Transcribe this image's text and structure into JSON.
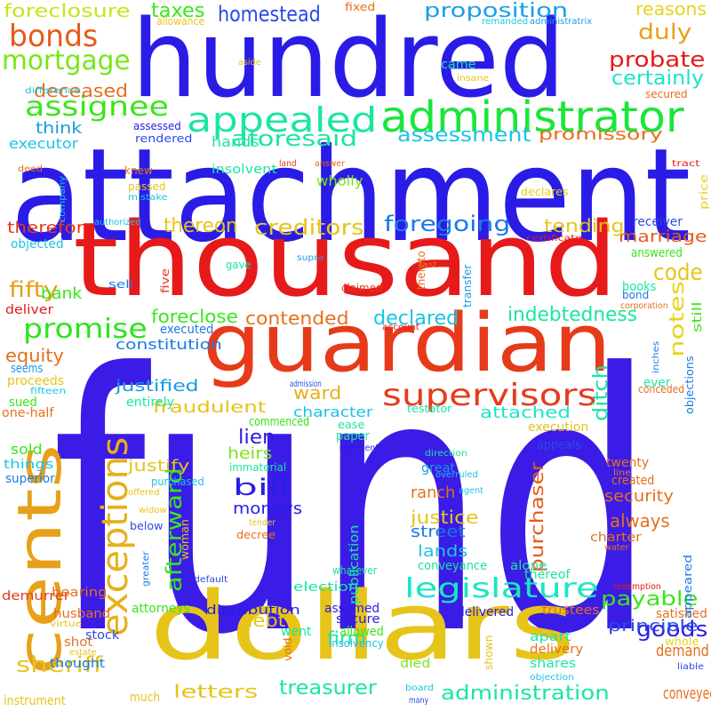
{
  "words": [
    {
      "text": "fund",
      "color": "#3a1ce6"
    },
    {
      "text": "attachment",
      "color": "#2a1ce6"
    },
    {
      "text": "hundred",
      "color": "#2a1ce6"
    },
    {
      "text": "thousand",
      "color": "#e61a1a"
    },
    {
      "text": "guardian",
      "color": "#e63a1a"
    },
    {
      "text": "dollars",
      "color": "#e6c41a"
    },
    {
      "text": "administrator",
      "color": "#1ae63a"
    },
    {
      "text": "appealed",
      "color": "#1ae6a0"
    },
    {
      "text": "cents",
      "color": "#e6a01a"
    },
    {
      "text": "exceptions",
      "color": "#e6b01a"
    },
    {
      "text": "supervisors",
      "color": "#e63a1a"
    },
    {
      "text": "legislature",
      "color": "#1ae6c4"
    },
    {
      "text": "mortgage",
      "color": "#7ae61a"
    },
    {
      "text": "bonds",
      "color": "#e65a1a"
    },
    {
      "text": "assignee",
      "color": "#3ae61a"
    },
    {
      "text": "promise",
      "color": "#2ae61a"
    },
    {
      "text": "homestead",
      "color": "#2a4ae6"
    },
    {
      "text": "proposition",
      "color": "#1aa0e6"
    },
    {
      "text": "foreclosure",
      "color": "#c4e61a"
    },
    {
      "text": "taxes",
      "color": "#3ae61a"
    },
    {
      "text": "aforesaid",
      "color": "#1ae6a0"
    },
    {
      "text": "assessment",
      "color": "#1ac4e6"
    },
    {
      "text": "creditors",
      "color": "#e6c41a"
    },
    {
      "text": "foregoing",
      "color": "#1a7ae6"
    },
    {
      "text": "thereon",
      "color": "#e6c41a"
    },
    {
      "text": "promissory",
      "color": "#e6701a"
    },
    {
      "text": "probate",
      "color": "#e61a1a"
    },
    {
      "text": "certainly",
      "color": "#1ae6c4"
    },
    {
      "text": "duly",
      "color": "#e6a01a"
    },
    {
      "text": "reasons",
      "color": "#e6d41a"
    },
    {
      "text": "deceased",
      "color": "#e6701a"
    },
    {
      "text": "fifty",
      "color": "#e6a01a"
    },
    {
      "text": "code",
      "color": "#e6c41a"
    },
    {
      "text": "marriage",
      "color": "#e65a1a"
    },
    {
      "text": "notes",
      "color": "#e6d41a"
    },
    {
      "text": "tending",
      "color": "#e6c41a"
    },
    {
      "text": "indebtedness",
      "color": "#1ae6a0"
    },
    {
      "text": "declared",
      "color": "#1ac4e6"
    },
    {
      "text": "contended",
      "color": "#e6701a"
    },
    {
      "text": "foreclose",
      "color": "#3ae61a"
    },
    {
      "text": "constitution",
      "color": "#1a7ae6"
    },
    {
      "text": "equity",
      "color": "#e6701a"
    },
    {
      "text": "bank",
      "color": "#3ae61a"
    },
    {
      "text": "ward",
      "color": "#e6b01a"
    },
    {
      "text": "justified",
      "color": "#1a9ae6"
    },
    {
      "text": "fraudulent",
      "color": "#e6c41a"
    },
    {
      "text": "character",
      "color": "#1ac4e6"
    },
    {
      "text": "attached",
      "color": "#1ae6c4"
    },
    {
      "text": "ditch",
      "color": "#1ae6a0"
    },
    {
      "text": "lien",
      "color": "#2a1ce6"
    },
    {
      "text": "heirs",
      "color": "#7ae61a"
    },
    {
      "text": "bill",
      "color": "#2a1ce6"
    },
    {
      "text": "moneys",
      "color": "#2a1ce6"
    },
    {
      "text": "afterward",
      "color": "#3ae61a"
    },
    {
      "text": "justify",
      "color": "#e6c41a"
    },
    {
      "text": "justice",
      "color": "#e6c41a"
    },
    {
      "text": "street",
      "color": "#1a7ae6"
    },
    {
      "text": "lands",
      "color": "#1ac4e6"
    },
    {
      "text": "ranch",
      "color": "#e6701a"
    },
    {
      "text": "purchaser",
      "color": "#e65a1a"
    },
    {
      "text": "security",
      "color": "#e6701a"
    },
    {
      "text": "always",
      "color": "#e6701a"
    },
    {
      "text": "goods",
      "color": "#2a1ce6"
    },
    {
      "text": "demand",
      "color": "#e6701a"
    },
    {
      "text": "payable",
      "color": "#3ae61a"
    },
    {
      "text": "principle",
      "color": "#2a4ae6"
    },
    {
      "text": "debt",
      "color": "#e6c41a"
    },
    {
      "text": "sheriff",
      "color": "#e6c41a"
    },
    {
      "text": "letters",
      "color": "#e6c41a"
    },
    {
      "text": "treasurer",
      "color": "#1ae6a0"
    },
    {
      "text": "administration",
      "color": "#1ae6a0"
    },
    {
      "text": "firm",
      "color": "#1ae6a0"
    },
    {
      "text": "conveyed",
      "color": "#e6701a"
    },
    {
      "text": "think",
      "color": "#1a9ae6"
    },
    {
      "text": "executor",
      "color": "#1ac4e6"
    },
    {
      "text": "came",
      "color": "#1ae6a0"
    },
    {
      "text": "hands",
      "color": "#1ae6a0"
    },
    {
      "text": "wholly",
      "color": "#7ae61a"
    },
    {
      "text": "therefor",
      "color": "#e63a1a"
    },
    {
      "text": "fifteen",
      "color": "#1ac4e6"
    },
    {
      "text": "sold",
      "color": "#3ae61a"
    },
    {
      "text": "things",
      "color": "#1ac4e6"
    },
    {
      "text": "superior",
      "color": "#1a7ae6"
    },
    {
      "text": "demurrer",
      "color": "#e63a1a"
    },
    {
      "text": "bearing",
      "color": "#e6701a"
    },
    {
      "text": "husband",
      "color": "#e6701a"
    },
    {
      "text": "thought",
      "color": "#1a7ae6"
    },
    {
      "text": "much",
      "color": "#e6c41a"
    },
    {
      "text": "instrument",
      "color": "#e6c41a"
    },
    {
      "text": "stock",
      "color": "#2a4ae6"
    },
    {
      "text": "attorneys",
      "color": "#3ae61a"
    },
    {
      "text": "distribution",
      "color": "#2a1ce6"
    },
    {
      "text": "election",
      "color": "#1ae6a0"
    },
    {
      "text": "assumed",
      "color": "#2a1ce6"
    },
    {
      "text": "secure",
      "color": "#2a1ce6"
    },
    {
      "text": "allowed",
      "color": "#3ae61a"
    },
    {
      "text": "went",
      "color": "#1ae6a0"
    },
    {
      "text": "died",
      "color": "#7ae61a"
    },
    {
      "text": "shares",
      "color": "#1ae6a0"
    },
    {
      "text": "delivery",
      "color": "#e6701a"
    },
    {
      "text": "apart",
      "color": "#1ae6a0"
    },
    {
      "text": "trustees",
      "color": "#e6701a"
    },
    {
      "text": "delivered",
      "color": "#2a1ce6"
    },
    {
      "text": "whole",
      "color": "#e6d41a"
    },
    {
      "text": "satisfied",
      "color": "#e6701a"
    },
    {
      "text": "appeared",
      "color": "#1a7ae6"
    },
    {
      "text": "conveyance",
      "color": "#1ae6a0"
    },
    {
      "text": "alone",
      "color": "#1ae6a0"
    },
    {
      "text": "thereof",
      "color": "#1ae6a0"
    },
    {
      "text": "great",
      "color": "#1a9ae6"
    },
    {
      "text": "twenty",
      "color": "#e6701a"
    },
    {
      "text": "created",
      "color": "#e6701a"
    },
    {
      "text": "charter",
      "color": "#e6701a"
    },
    {
      "text": "publication",
      "color": "#1ae6a0"
    },
    {
      "text": "commenced",
      "color": "#3ae61a"
    },
    {
      "text": "paper",
      "color": "#1ae6a0"
    },
    {
      "text": "execution",
      "color": "#e6c41a"
    },
    {
      "text": "appeals",
      "color": "#2a4ae6"
    },
    {
      "text": "entirely",
      "color": "#1ae6a0"
    },
    {
      "text": "sued",
      "color": "#3ae61a"
    },
    {
      "text": "one-half",
      "color": "#e6701a"
    },
    {
      "text": "seems",
      "color": "#1a9ae6"
    },
    {
      "text": "proceeds",
      "color": "#e6c41a"
    },
    {
      "text": "deliver",
      "color": "#e61a1a"
    },
    {
      "text": "executed",
      "color": "#1a7ae6"
    },
    {
      "text": "objected",
      "color": "#1ac4e6"
    },
    {
      "text": "sell",
      "color": "#1a7ae6"
    },
    {
      "text": "books",
      "color": "#1ae6a0"
    },
    {
      "text": "answered",
      "color": "#3ae61a"
    },
    {
      "text": "receiver",
      "color": "#2a4ae6"
    },
    {
      "text": "ever",
      "color": "#1ae6a0"
    },
    {
      "text": "conceded",
      "color": "#e6701a"
    },
    {
      "text": "objections",
      "color": "#1a7ae6"
    },
    {
      "text": "still",
      "color": "#3ae61a"
    },
    {
      "text": "price",
      "color": "#e6d41a"
    },
    {
      "text": "tract",
      "color": "#e61a1a"
    },
    {
      "text": "secured",
      "color": "#e6701a"
    },
    {
      "text": "insane",
      "color": "#e6c41a"
    },
    {
      "text": "allowance",
      "color": "#e6c41a"
    },
    {
      "text": "fixed",
      "color": "#e6701a"
    },
    {
      "text": "remanded",
      "color": "#1ac4e6"
    },
    {
      "text": "administratrix",
      "color": "#1a9ae6"
    },
    {
      "text": "aside",
      "color": "#e6c41a"
    },
    {
      "text": "difference",
      "color": "#1ac4e6"
    },
    {
      "text": "rendered",
      "color": "#2a4ae6"
    },
    {
      "text": "assessed",
      "color": "#2a1ce6"
    },
    {
      "text": "deed",
      "color": "#e6701a"
    },
    {
      "text": "knew",
      "color": "#e6701a"
    },
    {
      "text": "passed",
      "color": "#e6c41a"
    },
    {
      "text": "insolvent",
      "color": "#1ae6a0"
    },
    {
      "text": "land",
      "color": "#e63a1a"
    },
    {
      "text": "answer",
      "color": "#e6701a"
    },
    {
      "text": "company",
      "color": "#1ac4e6"
    },
    {
      "text": "mistake",
      "color": "#1ac4e6"
    },
    {
      "text": "declares",
      "color": "#e6d41a"
    },
    {
      "text": "authorized",
      "color": "#1ac4e6"
    },
    {
      "text": "certificate",
      "color": "#e61a1a"
    },
    {
      "text": "gave",
      "color": "#1ae6a0"
    },
    {
      "text": "supra",
      "color": "#1a9ae6"
    },
    {
      "text": "thereto",
      "color": "#e6701a"
    },
    {
      "text": "transfer",
      "color": "#1a9ae6"
    },
    {
      "text": "last",
      "color": "#e6701a"
    },
    {
      "text": "claimed",
      "color": "#e63a1a"
    },
    {
      "text": "bond",
      "color": "#1a7ae6"
    },
    {
      "text": "corporation",
      "color": "#e6701a"
    },
    {
      "text": "five",
      "color": "#e63a1a"
    },
    {
      "text": "account",
      "color": "#e61a1a"
    },
    {
      "text": "admission",
      "color": "#2a4ae6"
    },
    {
      "text": "inches",
      "color": "#1a7ae6"
    },
    {
      "text": "testator",
      "color": "#1ae6a0"
    },
    {
      "text": "ease",
      "color": "#1ae6a0"
    },
    {
      "text": "immaterial",
      "color": "#1ae6a0"
    },
    {
      "text": "decedent",
      "color": "#2a1ce6"
    },
    {
      "text": "direction",
      "color": "#1ae6a0"
    },
    {
      "text": "overruled",
      "color": "#1ac4e6"
    },
    {
      "text": "agent",
      "color": "#1ac4e6"
    },
    {
      "text": "line",
      "color": "#e6701a"
    },
    {
      "text": "water",
      "color": "#e6701a"
    },
    {
      "text": "purchased",
      "color": "#1ac4e6"
    },
    {
      "text": "offered",
      "color": "#e6c41a"
    },
    {
      "text": "widow",
      "color": "#e6c41a"
    },
    {
      "text": "woman",
      "color": "#e6c41a"
    },
    {
      "text": "decree",
      "color": "#e6701a"
    },
    {
      "text": "tender",
      "color": "#e6c41a"
    },
    {
      "text": "below",
      "color": "#2a4ae6"
    },
    {
      "text": "greater",
      "color": "#1a7ae6"
    },
    {
      "text": "default",
      "color": "#2a4ae6"
    },
    {
      "text": "virtue",
      "color": "#e6c41a"
    },
    {
      "text": "whatever",
      "color": "#1ae6a0"
    },
    {
      "text": "redemption",
      "color": "#e61a1a"
    },
    {
      "text": "void",
      "color": "#e6701a"
    },
    {
      "text": "insolvency",
      "color": "#1ac4e6"
    },
    {
      "text": "shown",
      "color": "#e6c41a"
    },
    {
      "text": "liable",
      "color": "#2a4ae6"
    },
    {
      "text": "shot",
      "color": "#e6701a"
    },
    {
      "text": "estate",
      "color": "#e6c41a"
    },
    {
      "text": "board",
      "color": "#1ac4e6"
    },
    {
      "text": "many",
      "color": "#2a4ae6"
    },
    {
      "text": "objection",
      "color": "#1ac4e6"
    }
  ]
}
